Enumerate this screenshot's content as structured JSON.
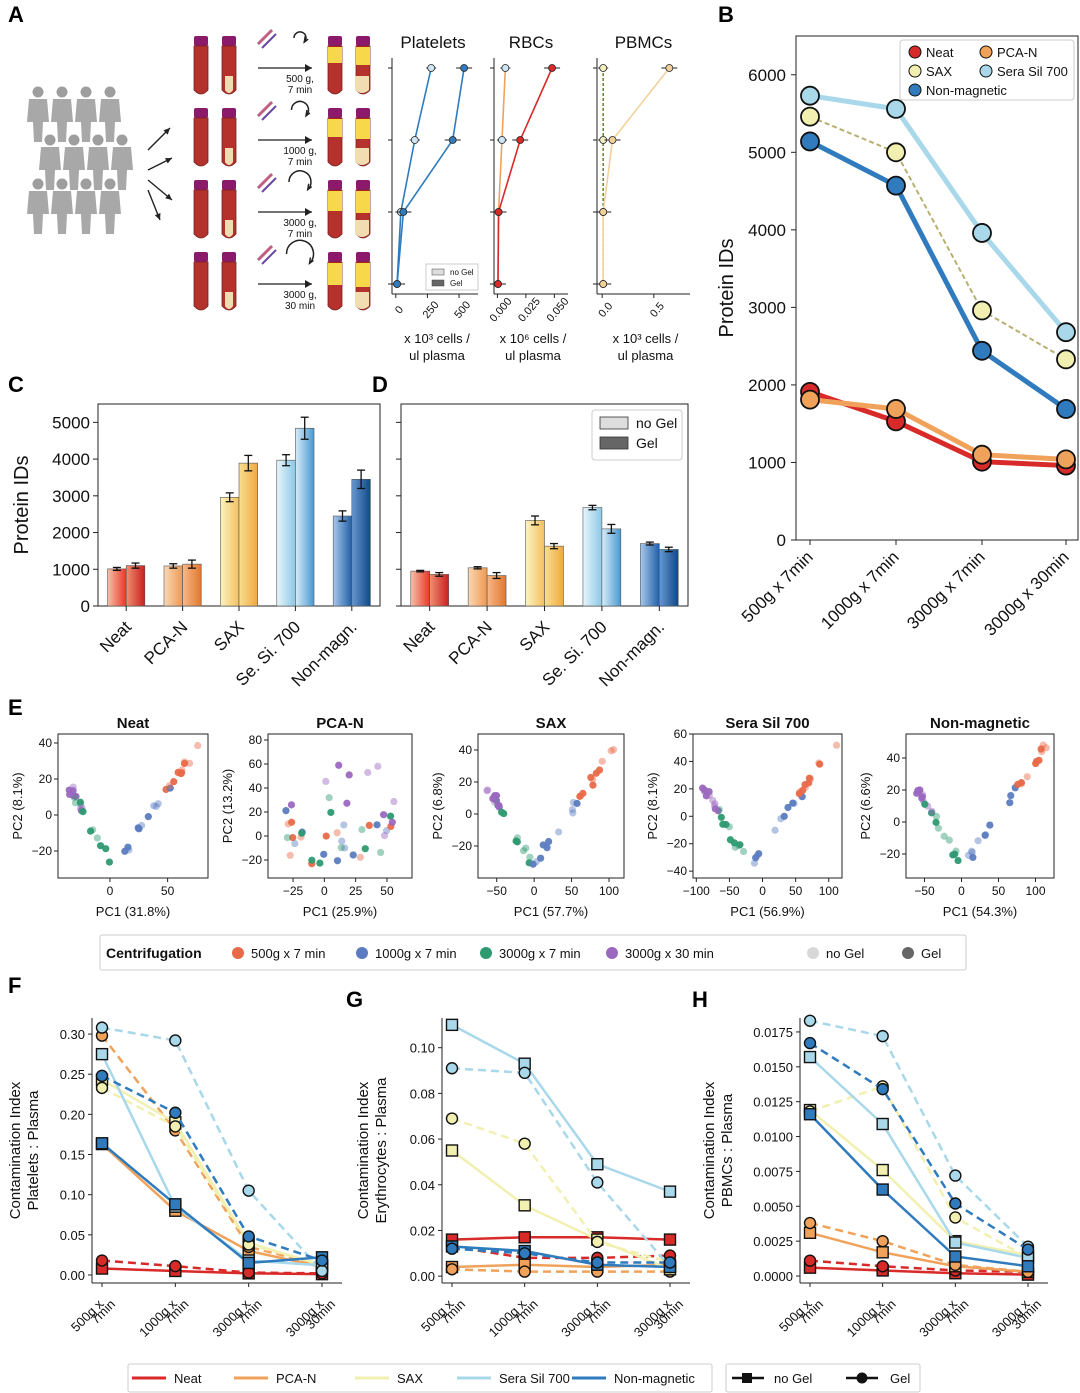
{
  "panel_letters": [
    "A",
    "B",
    "C",
    "D",
    "E",
    "F",
    "G",
    "H"
  ],
  "colors": {
    "Neat": "#d92a2a",
    "PCA-N": "#f0a25a",
    "SAX": "#f2f0b0",
    "SeraSil700": "#a8d8ea",
    "NonMagnetic": "#2f7bbd",
    "c500": "#e86a4a",
    "c1000": "#5b7cc0",
    "c3000": "#2e9a72",
    "c3000_30": "#9b68c0"
  },
  "panelA": {
    "spin_labels": [
      "500 g,\n7 min",
      "1000 g,\n7 min",
      "3000 g,\n7 min",
      "3000 g,\n30 min"
    ],
    "charts": [
      {
        "title": "Platelets",
        "xlabel": [
          "x 10³ cells /",
          "ul plasma"
        ],
        "xticks": [
          "0",
          "250",
          "500"
        ],
        "xlim": [
          -30,
          650
        ],
        "nogel": [
          280,
          150,
          40,
          10
        ],
        "gel": [
          540,
          450,
          60,
          10
        ],
        "color": "#2f7bbd"
      },
      {
        "title": "RBCs",
        "xlabel": [
          "x 10⁶ cells /",
          "ul plasma"
        ],
        "xticks": [
          "0.000",
          "0.025",
          "0.050"
        ],
        "xlim": [
          -0.003,
          0.062
        ],
        "nogel": [
          0.007,
          0.004,
          0.001,
          0.0005
        ],
        "gel": [
          0.048,
          0.02,
          0.001,
          0.0005
        ],
        "color": "#d92a2a",
        "color2": "#f0a25a"
      },
      {
        "title": "PBMCs",
        "xlabel": [
          "x 10³ cells /",
          "ul plasma"
        ],
        "xticks": [
          "0.0",
          "0.5"
        ],
        "xlim": [
          -0.05,
          0.85
        ],
        "nogel": [
          0.01,
          0.01,
          0.01,
          0.01
        ],
        "gel": [
          0.65,
          0.1,
          0.01,
          0.01
        ],
        "color": "#f2d19a"
      }
    ],
    "legend": [
      "no Gel",
      "Gel"
    ]
  },
  "chart_data": [
    {
      "id": "B",
      "type": "line",
      "ylabel": "Protein IDs",
      "ylim": [
        0,
        6500
      ],
      "yticks": [
        "0",
        "1000",
        "2000",
        "3000",
        "4000",
        "5000",
        "6000"
      ],
      "categories": [
        "500g x 7min",
        "1000g x 7min",
        "3000g x 7min",
        "3000g x 30min"
      ],
      "series": [
        {
          "name": "Neat",
          "values": [
            1910,
            1530,
            1010,
            960
          ]
        },
        {
          "name": "PCA-N",
          "values": [
            1810,
            1690,
            1100,
            1040
          ]
        },
        {
          "name": "SAX",
          "values": [
            5460,
            5000,
            2960,
            2330
          ]
        },
        {
          "name": "Sera Sil 700",
          "values": [
            5730,
            5560,
            3960,
            2680
          ]
        },
        {
          "name": "Non-magnetic",
          "values": [
            5140,
            4570,
            2440,
            1690
          ]
        }
      ]
    },
    {
      "id": "C",
      "type": "bar",
      "ylabel": "Protein IDs",
      "ylim": [
        0,
        5500
      ],
      "yticks": [
        "0",
        "1000",
        "2000",
        "3000",
        "4000",
        "5000"
      ],
      "categories": [
        "Neat",
        "PCA-N",
        "SAX",
        "Se. Si. 700",
        "Non-magn."
      ],
      "series": [
        {
          "name": "no Gel",
          "values": [
            1010,
            1090,
            2960,
            3970,
            2450
          ],
          "err": [
            40,
            60,
            120,
            150,
            140
          ]
        },
        {
          "name": "Gel",
          "values": [
            1100,
            1140,
            3890,
            4840,
            3450
          ],
          "err": [
            70,
            110,
            210,
            300,
            250
          ]
        }
      ]
    },
    {
      "id": "D",
      "type": "bar",
      "ylim": [
        0,
        5500
      ],
      "categories": [
        "Neat",
        "PCA-N",
        "SAX",
        "Se. Si. 700",
        "Non-magn."
      ],
      "legend": [
        "no Gel",
        "Gel"
      ],
      "series": [
        {
          "name": "no Gel",
          "values": [
            950,
            1040,
            2330,
            2680,
            1700
          ],
          "err": [
            20,
            30,
            120,
            60,
            40
          ]
        },
        {
          "name": "Gel",
          "values": [
            860,
            830,
            1630,
            2100,
            1540
          ],
          "err": [
            50,
            80,
            70,
            120,
            60
          ]
        }
      ]
    },
    {
      "id": "E",
      "type": "scatter",
      "plots": [
        {
          "title": "Neat",
          "xlabel": "PC1 (31.8%)",
          "ylabel": "PC2 (8.1%)",
          "xlim": [
            -45,
            85
          ],
          "ylim": [
            -35,
            45
          ],
          "xticks": [
            0,
            50
          ],
          "yticks": [
            -20,
            0,
            20,
            40
          ]
        },
        {
          "title": "PCA-N",
          "xlabel": "PC1 (25.9%)",
          "ylabel": "PC2 (13.2%)",
          "xlim": [
            -45,
            70
          ],
          "ylim": [
            -35,
            85
          ],
          "xticks": [
            -25,
            0,
            25,
            50
          ],
          "yticks": [
            -20,
            0,
            20,
            40,
            60,
            80
          ]
        },
        {
          "title": "SAX",
          "xlabel": "PC1 (57.7%)",
          "ylabel": "PC2 (6.8%)",
          "xlim": [
            -75,
            120
          ],
          "ylim": [
            -40,
            50
          ],
          "xticks": [
            -50,
            0,
            50,
            100
          ],
          "yticks": [
            -20,
            0,
            20,
            40
          ]
        },
        {
          "title": "Sera Sil 700",
          "xlabel": "PC1 (56.9%)",
          "ylabel": "PC2 (8.1%)",
          "xlim": [
            -105,
            120
          ],
          "ylim": [
            -45,
            60
          ],
          "xticks": [
            -100,
            -50,
            0,
            50,
            100
          ],
          "yticks": [
            -40,
            -20,
            0,
            20,
            40,
            60
          ]
        },
        {
          "title": "Non-magnetic",
          "xlabel": "PC1 (54.3%)",
          "ylabel": "PC2 (6.6%)",
          "xlim": [
            -75,
            125
          ],
          "ylim": [
            -35,
            55
          ],
          "xticks": [
            -50,
            0,
            50,
            100
          ],
          "yticks": [
            -20,
            0,
            20,
            40
          ]
        }
      ],
      "legend_title": "Centrifugation",
      "legend": [
        "500g x 7 min",
        "1000g x 7 min",
        "3000g x 7 min",
        "3000g x 30 min",
        "no Gel",
        "Gel"
      ]
    },
    {
      "id": "F",
      "type": "line",
      "ylabel": [
        "Contamination Index",
        "Platelets : Plasma"
      ],
      "ylim": [
        -0.01,
        0.32
      ],
      "yticks": [
        "0.00",
        "0.05",
        "0.10",
        "0.15",
        "0.20",
        "0.25",
        "0.30"
      ],
      "ytickvals": [
        0,
        0.05,
        0.1,
        0.15,
        0.2,
        0.25,
        0.3
      ],
      "categories": [
        "500g x\n7min",
        "1000g x\n7min",
        "3000g x\n7min",
        "3000g x\n30min"
      ],
      "series": [
        {
          "name": "Neat",
          "nogel": [
            0.008,
            0.005,
            0.002,
            0.001
          ],
          "gel": [
            0.018,
            0.011,
            0.003,
            0.002
          ]
        },
        {
          "name": "PCA-N",
          "nogel": [
            0.163,
            0.08,
            0.03,
            0.01
          ],
          "gel": [
            0.298,
            0.18,
            0.035,
            0.012
          ]
        },
        {
          "name": "SAX",
          "nogel": [
            0.243,
            0.19,
            0.04,
            0.012
          ],
          "gel": [
            0.233,
            0.185,
            0.038,
            0.013
          ]
        },
        {
          "name": "Sera Sil 700",
          "nogel": [
            0.275,
            0.085,
            0.018,
            0.012
          ],
          "gel": [
            0.308,
            0.292,
            0.105,
            0.005
          ]
        },
        {
          "name": "Non-magnetic",
          "nogel": [
            0.164,
            0.088,
            0.015,
            0.022
          ],
          "gel": [
            0.248,
            0.202,
            0.048,
            0.018
          ]
        }
      ]
    },
    {
      "id": "G",
      "type": "line",
      "ylabel": [
        "Contamination Index",
        "Erythrocytes : Plasma"
      ],
      "ylim": [
        -0.003,
        0.113
      ],
      "yticks": [
        "0.00",
        "0.02",
        "0.04",
        "0.06",
        "0.08",
        "0.10"
      ],
      "ytickvals": [
        0,
        0.02,
        0.04,
        0.06,
        0.08,
        0.1
      ],
      "categories": [
        "500g x\n7min",
        "1000g x\n7min",
        "3000g x\n7min",
        "3000g x\n30min"
      ],
      "series": [
        {
          "name": "Neat",
          "nogel": [
            0.016,
            0.017,
            0.017,
            0.016
          ],
          "gel": [
            0.013,
            0.008,
            0.008,
            0.009
          ]
        },
        {
          "name": "PCA-N",
          "nogel": [
            0.004,
            0.005,
            0.004,
            0.005
          ],
          "gel": [
            0.003,
            0.002,
            0.002,
            0.002
          ]
        },
        {
          "name": "SAX",
          "nogel": [
            0.055,
            0.031,
            0.016,
            0.003
          ],
          "gel": [
            0.069,
            0.058,
            0.015,
            0.006
          ]
        },
        {
          "name": "Sera Sil 700",
          "nogel": [
            0.11,
            0.093,
            0.049,
            0.037
          ],
          "gel": [
            0.091,
            0.089,
            0.041,
            0.004
          ]
        },
        {
          "name": "Non-magnetic",
          "nogel": [
            0.013,
            0.011,
            0.005,
            0.004
          ],
          "gel": [
            0.012,
            0.01,
            0.006,
            0.006
          ]
        }
      ]
    },
    {
      "id": "H",
      "type": "line",
      "ylabel": [
        "Contamination Index",
        "PBMCs : Plasma"
      ],
      "ylim": [
        -0.0005,
        0.0185
      ],
      "yticks": [
        "0.0000",
        "0.0025",
        "0.0050",
        "0.0075",
        "0.0100",
        "0.0125",
        "0.0150",
        "0.0175"
      ],
      "ytickvals": [
        0,
        0.0025,
        0.005,
        0.0075,
        0.01,
        0.0125,
        0.015,
        0.0175
      ],
      "categories": [
        "500g x\n7min",
        "1000g x\n7min",
        "3000g x\n7min",
        "3000g x\n30min"
      ],
      "series": [
        {
          "name": "Neat",
          "nogel": [
            0.0006,
            0.0004,
            0.0002,
            0.0001
          ],
          "gel": [
            0.0011,
            0.0007,
            0.0004,
            0.0003
          ]
        },
        {
          "name": "PCA-N",
          "nogel": [
            0.0031,
            0.0017,
            0.0007,
            0.0003
          ],
          "gel": [
            0.0038,
            0.0025,
            0.0008,
            0.0003
          ]
        },
        {
          "name": "SAX",
          "nogel": [
            0.0119,
            0.0076,
            0.0025,
            0.0015
          ],
          "gel": [
            0.0118,
            0.0136,
            0.0042,
            0.0013
          ]
        },
        {
          "name": "Sera Sil 700",
          "nogel": [
            0.0157,
            0.0109,
            0.0024,
            0.0013
          ],
          "gel": [
            0.0183,
            0.0172,
            0.0072,
            0.0021
          ]
        },
        {
          "name": "Non-magnetic",
          "nogel": [
            0.0116,
            0.0062,
            0.0014,
            0.0007
          ],
          "gel": [
            0.0167,
            0.0134,
            0.0052,
            0.0019
          ]
        }
      ]
    }
  ],
  "legendB": [
    "Neat",
    "PCA-N",
    "SAX",
    "Sera Sil 700",
    "Non-magnetic"
  ],
  "bottom_legend": [
    "Neat",
    "PCA-N",
    "SAX",
    "Sera Sil 700",
    "Non-magnetic",
    "no Gel",
    "Gel"
  ]
}
